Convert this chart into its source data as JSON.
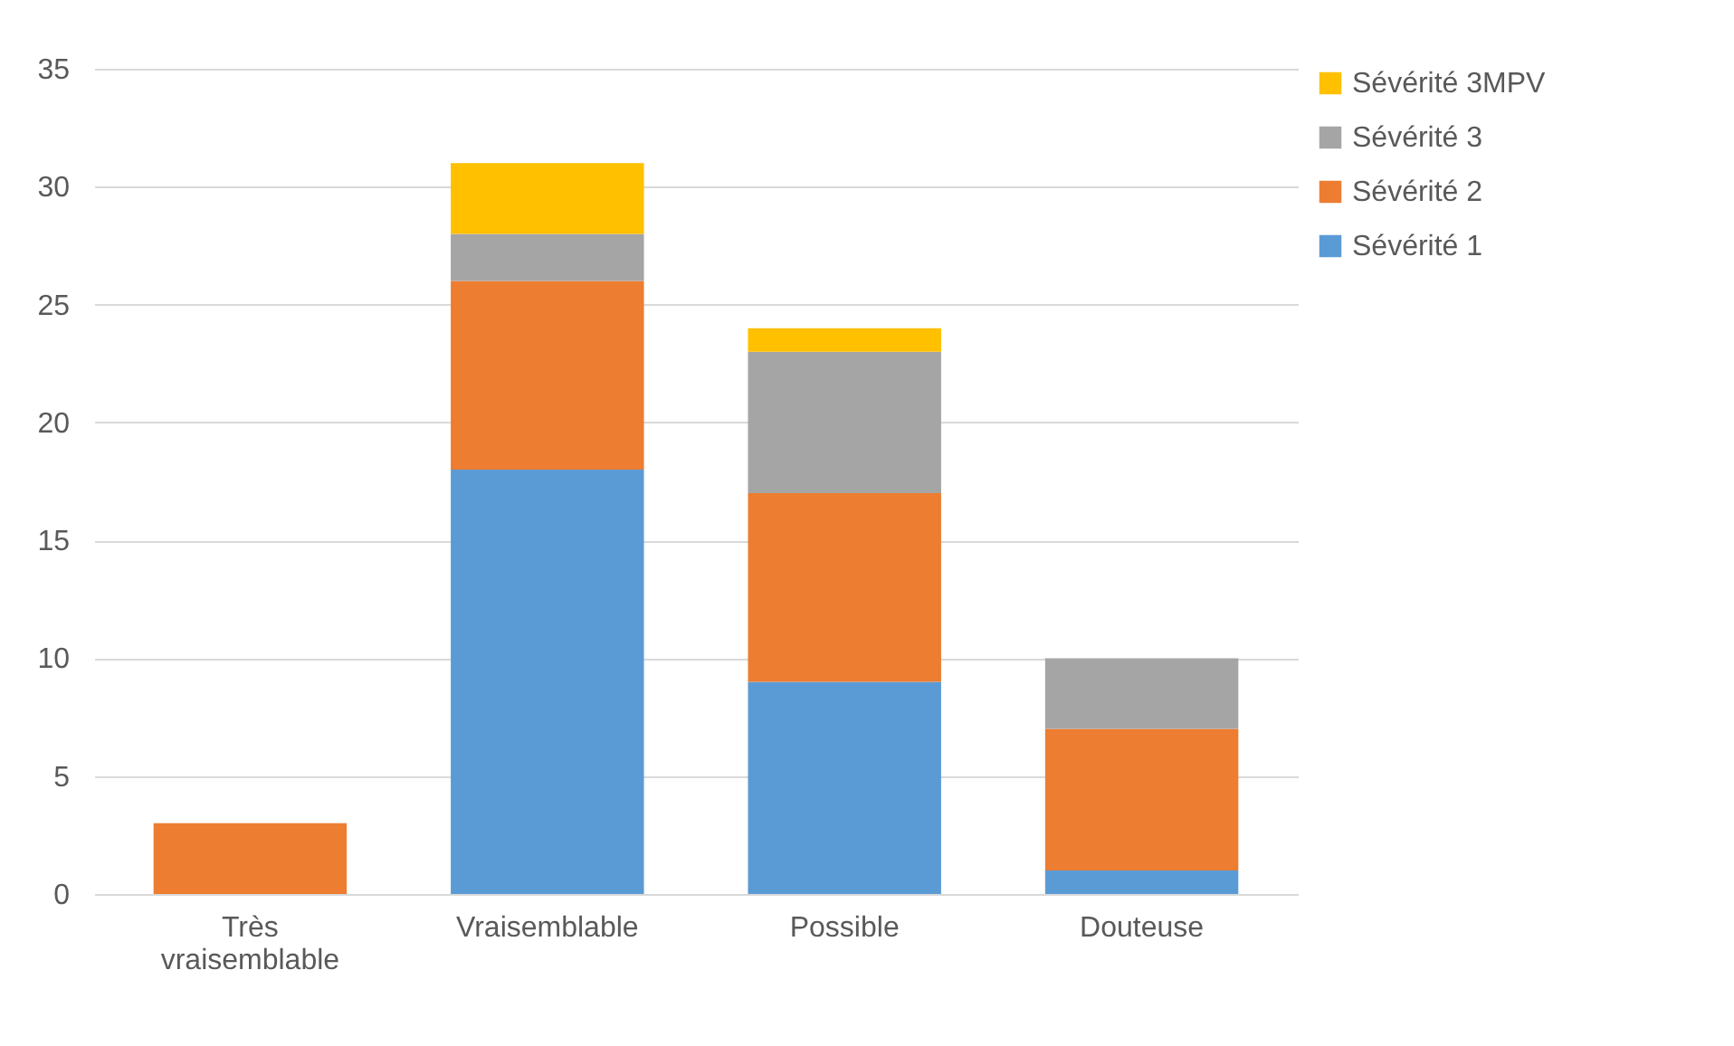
{
  "chart_data": {
    "type": "bar",
    "stacked": true,
    "categories": [
      "Très vraisemblable",
      "Vraisemblable",
      "Possible",
      "Douteuse"
    ],
    "series": [
      {
        "name": "Sévérité 1",
        "color": "#5b9bd5",
        "values": [
          0,
          18,
          9,
          1
        ]
      },
      {
        "name": "Sévérité 2",
        "color": "#ed7d31",
        "values": [
          3,
          8,
          8,
          6
        ]
      },
      {
        "name": "Sévérité 3",
        "color": "#a5a5a5",
        "values": [
          0,
          2,
          6,
          3
        ]
      },
      {
        "name": "Sévérité 3MPV",
        "color": "#ffc000",
        "values": [
          0,
          3,
          1,
          0
        ]
      }
    ],
    "ylim": [
      0,
      35
    ],
    "yticks": [
      0,
      5,
      10,
      15,
      20,
      25,
      30,
      35
    ],
    "grid": "y",
    "legend": "right"
  }
}
